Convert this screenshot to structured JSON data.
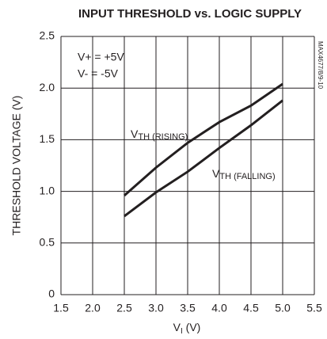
{
  "chart_data": {
    "type": "line",
    "title": "INPUT THRESHOLD vs. LOGIC SUPPLY",
    "x_label": [
      "V",
      "I",
      " (V)"
    ],
    "y_label": "THRESHOLD VOLTAGE (V)",
    "side_note": "MAX4677/8/9-10",
    "conditions": [
      "V+ = +5V",
      "V- = -5V"
    ],
    "x": [
      2.5,
      3.0,
      3.5,
      4.0,
      4.5,
      5.0
    ],
    "series": [
      {
        "name": [
          "V",
          "TH (RISING)"
        ],
        "color": "#231f20",
        "values": [
          0.96,
          1.23,
          1.47,
          1.67,
          1.83,
          2.04
        ]
      },
      {
        "name": [
          "V",
          "TH (FALLING)"
        ],
        "color": "#231f20",
        "values": [
          0.76,
          0.99,
          1.19,
          1.42,
          1.64,
          1.88
        ]
      }
    ],
    "xlim": [
      1.5,
      5.5
    ],
    "xticks": [
      1.5,
      {
        "value": 2,
        "label": "2.0"
      },
      2.5,
      {
        "value": 3,
        "label": "3.0"
      },
      3.5,
      {
        "value": 4,
        "label": "4.0"
      },
      4.5,
      {
        "value": 5,
        "label": "5.0"
      },
      5.5
    ],
    "ylim": [
      0,
      2.5
    ],
    "yticks": [
      0,
      0.5,
      {
        "value": 1,
        "label": "1.0"
      },
      1.5,
      {
        "value": 2,
        "label": "2.0"
      },
      2.5
    ],
    "grid": true
  }
}
